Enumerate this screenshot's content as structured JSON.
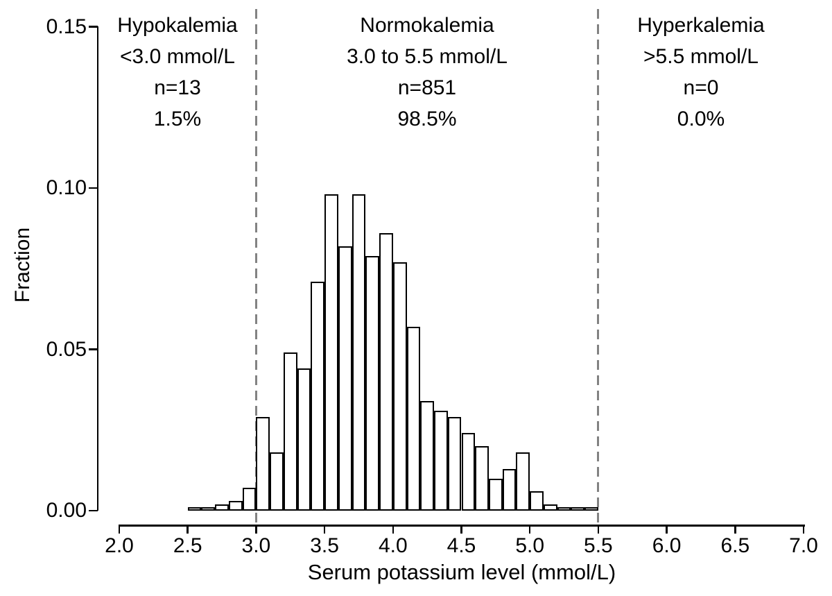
{
  "chart_data": {
    "type": "bar",
    "subtype": "histogram",
    "xlabel": "Serum potassium level (mmol/L)",
    "ylabel": "Fraction",
    "xlim": [
      2.0,
      7.0
    ],
    "ylim": [
      0.0,
      0.15
    ],
    "grid": false,
    "bin_width": 0.1,
    "bin_starts": [
      2.5,
      2.6,
      2.7,
      2.8,
      2.9,
      3.0,
      3.1,
      3.2,
      3.3,
      3.4,
      3.5,
      3.6,
      3.7,
      3.8,
      3.9,
      4.0,
      4.1,
      4.2,
      4.3,
      4.4,
      4.5,
      4.6,
      4.7,
      4.8,
      4.9,
      5.0,
      5.1,
      5.2,
      5.3,
      5.4
    ],
    "fractions": [
      0.001,
      0.001,
      0.002,
      0.003,
      0.007,
      0.029,
      0.018,
      0.049,
      0.044,
      0.071,
      0.098,
      0.082,
      0.098,
      0.079,
      0.086,
      0.077,
      0.057,
      0.034,
      0.031,
      0.029,
      0.024,
      0.02,
      0.01,
      0.013,
      0.018,
      0.006,
      0.002,
      0.001,
      0.001,
      0.001
    ],
    "x_ticks": [
      "2.0",
      "2.5",
      "3.0",
      "3.5",
      "4.0",
      "4.5",
      "5.0",
      "5.5",
      "6.0",
      "6.5",
      "7.0"
    ],
    "x_tick_values": [
      2.0,
      2.5,
      3.0,
      3.5,
      4.0,
      4.5,
      5.0,
      5.5,
      6.0,
      6.5,
      7.0
    ],
    "y_ticks": [
      "0.00",
      "0.05",
      "0.10",
      "0.15"
    ],
    "y_tick_values": [
      0.0,
      0.05,
      0.1,
      0.15
    ],
    "reference_lines": [
      {
        "x": 3.0,
        "style": "dashed",
        "color": "#828282"
      },
      {
        "x": 5.5,
        "style": "dashed",
        "color": "#828282"
      }
    ],
    "annotations": [
      {
        "region": "hypokalemia",
        "lines": [
          "Hypokalemia",
          "<3.0 mmol/L",
          "n=13",
          "1.5%"
        ]
      },
      {
        "region": "normokalemia",
        "lines": [
          "Normokalemia",
          "3.0 to 5.5 mmol/L",
          "n=851",
          "98.5%"
        ]
      },
      {
        "region": "hyperkalemia",
        "lines": [
          "Hyperkalemia",
          ">5.5 mmol/L",
          "n=0",
          "0.0%"
        ]
      }
    ],
    "colors": {
      "bar_fill": "#ffffff",
      "bar_border": "#000000",
      "axis": "#000000",
      "reference_line": "#828282",
      "background": "#ffffff"
    }
  }
}
